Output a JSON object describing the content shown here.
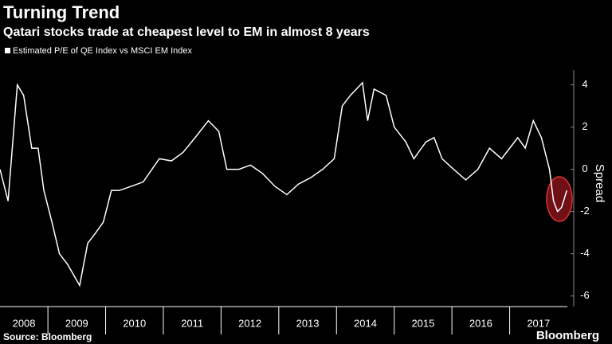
{
  "chart_data": {
    "type": "line",
    "title": "Turning Trend",
    "subtitle": "Qatari stocks trade at cheapest level to EM in almost 8 years",
    "y_label": "Spread",
    "source": "Source: Bloomberg",
    "brand": "Bloomberg",
    "categories": [
      "2008",
      "2009",
      "2010",
      "2011",
      "2012",
      "2013",
      "2014",
      "2015",
      "2016",
      "2017"
    ],
    "xlim": [
      2008.17,
      2018
    ],
    "ylim": [
      -6.5,
      4.7
    ],
    "yticks": [
      -6,
      -4,
      -2,
      0,
      2,
      4
    ],
    "series": [
      {
        "name": "Estimated P/E of QE Index vs MSCI EM Index",
        "color": "#ffffff",
        "x": [
          2008.17,
          2008.31,
          2008.47,
          2008.58,
          2008.72,
          2008.83,
          2008.93,
          2009.07,
          2009.2,
          2009.34,
          2009.55,
          2009.69,
          2009.83,
          2009.96,
          2010.1,
          2010.24,
          2010.45,
          2010.65,
          2010.93,
          2011.14,
          2011.34,
          2011.55,
          2011.78,
          2011.96,
          2012.1,
          2012.31,
          2012.51,
          2012.72,
          2012.93,
          2013.14,
          2013.34,
          2013.55,
          2013.76,
          2013.96,
          2014.1,
          2014.24,
          2014.45,
          2014.54,
          2014.65,
          2014.86,
          2015.0,
          2015.2,
          2015.34,
          2015.55,
          2015.69,
          2015.83,
          2016.03,
          2016.24,
          2016.45,
          2016.65,
          2016.86,
          2017.0,
          2017.14,
          2017.27,
          2017.41,
          2017.55,
          2017.69,
          2017.76,
          2017.83,
          2017.9,
          2017.99
        ],
        "values": [
          0,
          -1.5,
          4.0,
          3.5,
          1,
          1,
          -1,
          -2.5,
          -4,
          -4.5,
          -5.5,
          -3.5,
          -3,
          -2.5,
          -1,
          -1,
          -0.8,
          -0.6,
          0.5,
          0.4,
          0.8,
          1.5,
          2.3,
          1.8,
          0,
          0,
          0.2,
          -0.2,
          -0.8,
          -1.2,
          -0.7,
          -0.4,
          0,
          0.5,
          3,
          3.5,
          4.1,
          2.3,
          3.8,
          3.5,
          2,
          1.3,
          0.5,
          1.3,
          1.5,
          0.5,
          0,
          -0.5,
          0,
          1,
          0.5,
          1,
          1.5,
          1,
          2.3,
          1.5,
          0,
          -1.5,
          -2,
          -1.8,
          -1.0
        ]
      }
    ]
  }
}
